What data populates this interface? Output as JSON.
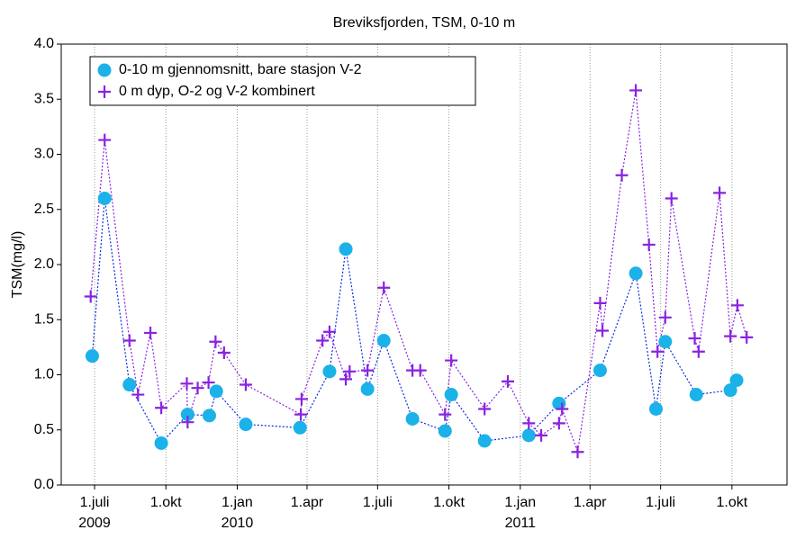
{
  "chart_data": {
    "type": "line",
    "title": "Breviksfjorden, TSM,  0-10 m",
    "y_label": "TSM(mg/l)",
    "xlim": [
      "2009-05-19",
      "2011-12-11"
    ],
    "xticks": [
      {
        "value": "2009-07-01",
        "label": "1.juli",
        "year": "2009"
      },
      {
        "value": "2009-10-01",
        "label": "1.okt"
      },
      {
        "value": "2010-01-01",
        "label": "1.jan",
        "year": "2010"
      },
      {
        "value": "2010-04-01",
        "label": "1.apr"
      },
      {
        "value": "2010-07-01",
        "label": "1.juli"
      },
      {
        "value": "2010-10-01",
        "label": "1.okt"
      },
      {
        "value": "2011-01-01",
        "label": "1.jan",
        "year": "2011"
      },
      {
        "value": "2011-04-01",
        "label": "1.apr"
      },
      {
        "value": "2011-07-01",
        "label": "1.juli"
      },
      {
        "value": "2011-10-01",
        "label": "1.okt"
      }
    ],
    "ylim": [
      0,
      4
    ],
    "yticks": [
      {
        "value": 0,
        "label": "0.0"
      },
      {
        "value": 0.5,
        "label": "0.5"
      },
      {
        "value": 1,
        "label": "1.0"
      },
      {
        "value": 1.5,
        "label": "1.5"
      },
      {
        "value": 2,
        "label": "2.0"
      },
      {
        "value": 2.5,
        "label": "2.5"
      },
      {
        "value": 3,
        "label": "3.0"
      },
      {
        "value": 3.5,
        "label": "3.5"
      },
      {
        "value": 4,
        "label": "4.0"
      }
    ],
    "x_grid": true,
    "legend": "upper-left",
    "series": [
      {
        "name": "0-10 m gjennomsnitt, bare stasjon V-2",
        "color": "#0a2ee0",
        "marker_color": "#1ab2e8",
        "marker": "circle",
        "x": [
          "2009-06-28",
          "2009-07-14",
          "2009-08-15",
          "2009-09-25",
          "2009-10-29",
          "2009-11-26",
          "2009-12-05",
          "2010-01-12",
          "2010-03-23",
          "2010-04-30",
          "2010-05-21",
          "2010-06-18",
          "2010-07-09",
          "2010-08-15",
          "2010-09-26",
          "2010-10-04",
          "2010-11-16",
          "2011-01-12",
          "2011-02-20",
          "2011-04-14",
          "2011-05-30",
          "2011-06-25",
          "2011-07-07",
          "2011-08-16",
          "2011-09-29",
          "2011-10-07"
        ],
        "values": [
          1.17,
          2.6,
          0.91,
          0.38,
          0.64,
          0.63,
          0.85,
          0.55,
          0.52,
          1.03,
          2.14,
          0.87,
          1.31,
          0.6,
          0.49,
          0.82,
          0.4,
          0.45,
          0.74,
          1.04,
          1.92,
          0.69,
          1.3,
          0.82,
          0.86,
          0.95
        ]
      },
      {
        "name": "0 m dyp, O-2 og V-2 kombinert",
        "color": "#8a22e0",
        "marker_color": "#8a22e0",
        "marker": "plus",
        "x": [
          "2009-06-26",
          "2009-07-14",
          "2009-08-15",
          "2009-08-26",
          "2009-09-11",
          "2009-09-25",
          "2009-10-28",
          "2009-10-29",
          "2009-11-11",
          "2009-11-25",
          "2009-12-04",
          "2009-12-15",
          "2010-01-12",
          "2010-03-24",
          "2010-03-25",
          "2010-04-21",
          "2010-04-30",
          "2010-05-21",
          "2010-05-26",
          "2010-06-18",
          "2010-07-09",
          "2010-08-15",
          "2010-08-25",
          "2010-09-26",
          "2010-10-04",
          "2010-11-16",
          "2010-12-16",
          "2011-01-12",
          "2011-01-28",
          "2011-02-20",
          "2011-02-24",
          "2011-03-16",
          "2011-04-14",
          "2011-04-17",
          "2011-05-12",
          "2011-05-30",
          "2011-06-16",
          "2011-06-27",
          "2011-07-07",
          "2011-07-15",
          "2011-08-14",
          "2011-08-19",
          "2011-09-15",
          "2011-09-29",
          "2011-10-08",
          "2011-10-20"
        ],
        "values": [
          1.71,
          3.13,
          1.31,
          0.82,
          1.38,
          0.7,
          0.92,
          0.57,
          0.88,
          0.93,
          1.3,
          1.2,
          0.91,
          0.64,
          0.78,
          1.31,
          1.39,
          0.96,
          1.03,
          1.04,
          1.79,
          1.04,
          1.04,
          0.64,
          1.13,
          0.69,
          0.94,
          0.56,
          0.45,
          0.56,
          0.69,
          0.3,
          1.65,
          1.4,
          2.81,
          3.58,
          2.18,
          1.21,
          1.52,
          2.6,
          1.33,
          1.21,
          2.65,
          1.35,
          1.63,
          1.34
        ]
      }
    ]
  }
}
